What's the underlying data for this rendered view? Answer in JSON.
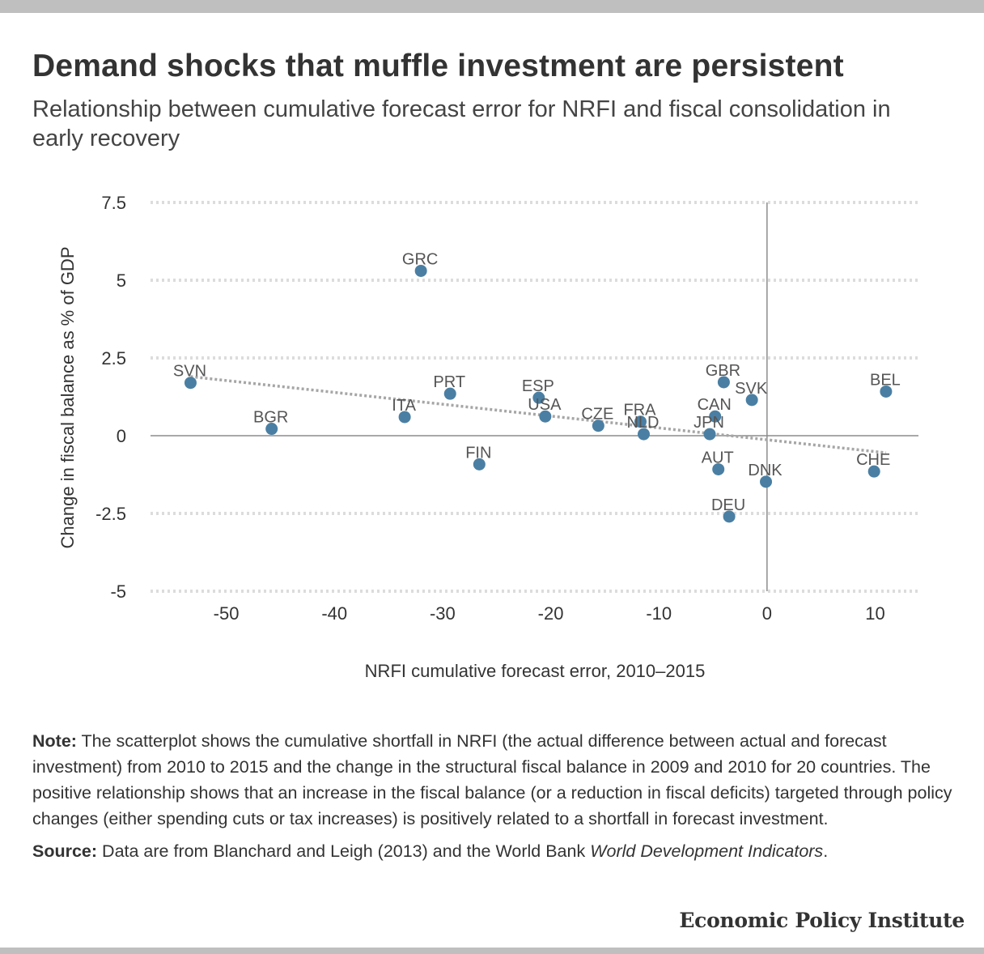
{
  "title": "Demand shocks that muffle investment are persistent",
  "subtitle": "Relationship between cumulative forecast error for NRFI and fiscal consolidation in early recovery",
  "note": {
    "label": "Note:",
    "text": " The scatterplot shows the cumulative shortfall in NRFI (the actual difference between actual and forecast investment) from 2010 to 2015 and the change in the structural fiscal balance in 2009 and 2010 for 20 countries. The positive relationship shows that an increase in the fiscal balance (or a reduction in fiscal deficits) targeted through policy changes (either spending cuts or tax increases) is positively related to a shortfall in forecast investment."
  },
  "source": {
    "label": "Source:",
    "text_before": " Data are from Blanchard and Leigh (2013) and the World Bank ",
    "italic": "World Development Indicators",
    "text_after": "."
  },
  "brand": "Economic Policy Institute",
  "colors": {
    "point": "#4a7fa3",
    "trend": "#a6a6a6",
    "grid": "#dcdcdc",
    "axis": "#8c8c8c"
  },
  "chart_data": {
    "type": "scatter",
    "xlabel": "NRFI cumulative forecast error, 2010–2015",
    "ylabel": "Change in fiscal balance as % of GDP",
    "xlim": [
      -57,
      14
    ],
    "ylim": [
      -5,
      7.5
    ],
    "xticks": [
      -50,
      -40,
      -30,
      -20,
      -10,
      0,
      10
    ],
    "yticks": [
      7.5,
      5,
      2.5,
      0,
      -2.5,
      -5
    ],
    "ytick_labels": [
      "7.5",
      "5",
      "2.5",
      "0",
      "-2.5",
      "-5"
    ],
    "grid": "horizontal dotted",
    "trendline": {
      "x": [
        -53.3,
        11
      ],
      "y": [
        1.9,
        -0.55
      ]
    },
    "points": [
      {
        "label": "SVN",
        "x": -53.3,
        "y": 1.7
      },
      {
        "label": "BGR",
        "x": -45.8,
        "y": 0.22
      },
      {
        "label": "GRC",
        "x": -32.0,
        "y": 5.3
      },
      {
        "label": "ITA",
        "x": -33.5,
        "y": 0.6
      },
      {
        "label": "PRT",
        "x": -29.3,
        "y": 1.35
      },
      {
        "label": "FIN",
        "x": -26.6,
        "y": -0.92
      },
      {
        "label": "ESP",
        "x": -21.1,
        "y": 1.22
      },
      {
        "label": "USA",
        "x": -20.5,
        "y": 0.62
      },
      {
        "label": "CZE",
        "x": -15.6,
        "y": 0.32
      },
      {
        "label": "FRA",
        "x": -11.7,
        "y": 0.45
      },
      {
        "label": "NLD",
        "x": -11.4,
        "y": 0.05
      },
      {
        "label": "JPN",
        "x": -5.3,
        "y": 0.05
      },
      {
        "label": "CAN",
        "x": -4.8,
        "y": 0.62
      },
      {
        "label": "GBR",
        "x": -4.0,
        "y": 1.72
      },
      {
        "label": "SVK",
        "x": -1.4,
        "y": 1.15
      },
      {
        "label": "AUT",
        "x": -4.5,
        "y": -1.08
      },
      {
        "label": "DEU",
        "x": -3.5,
        "y": -2.6
      },
      {
        "label": "DNK",
        "x": -0.1,
        "y": -1.48
      },
      {
        "label": "BEL",
        "x": 11.0,
        "y": 1.42
      },
      {
        "label": "CHE",
        "x": 9.9,
        "y": -1.15
      }
    ]
  }
}
